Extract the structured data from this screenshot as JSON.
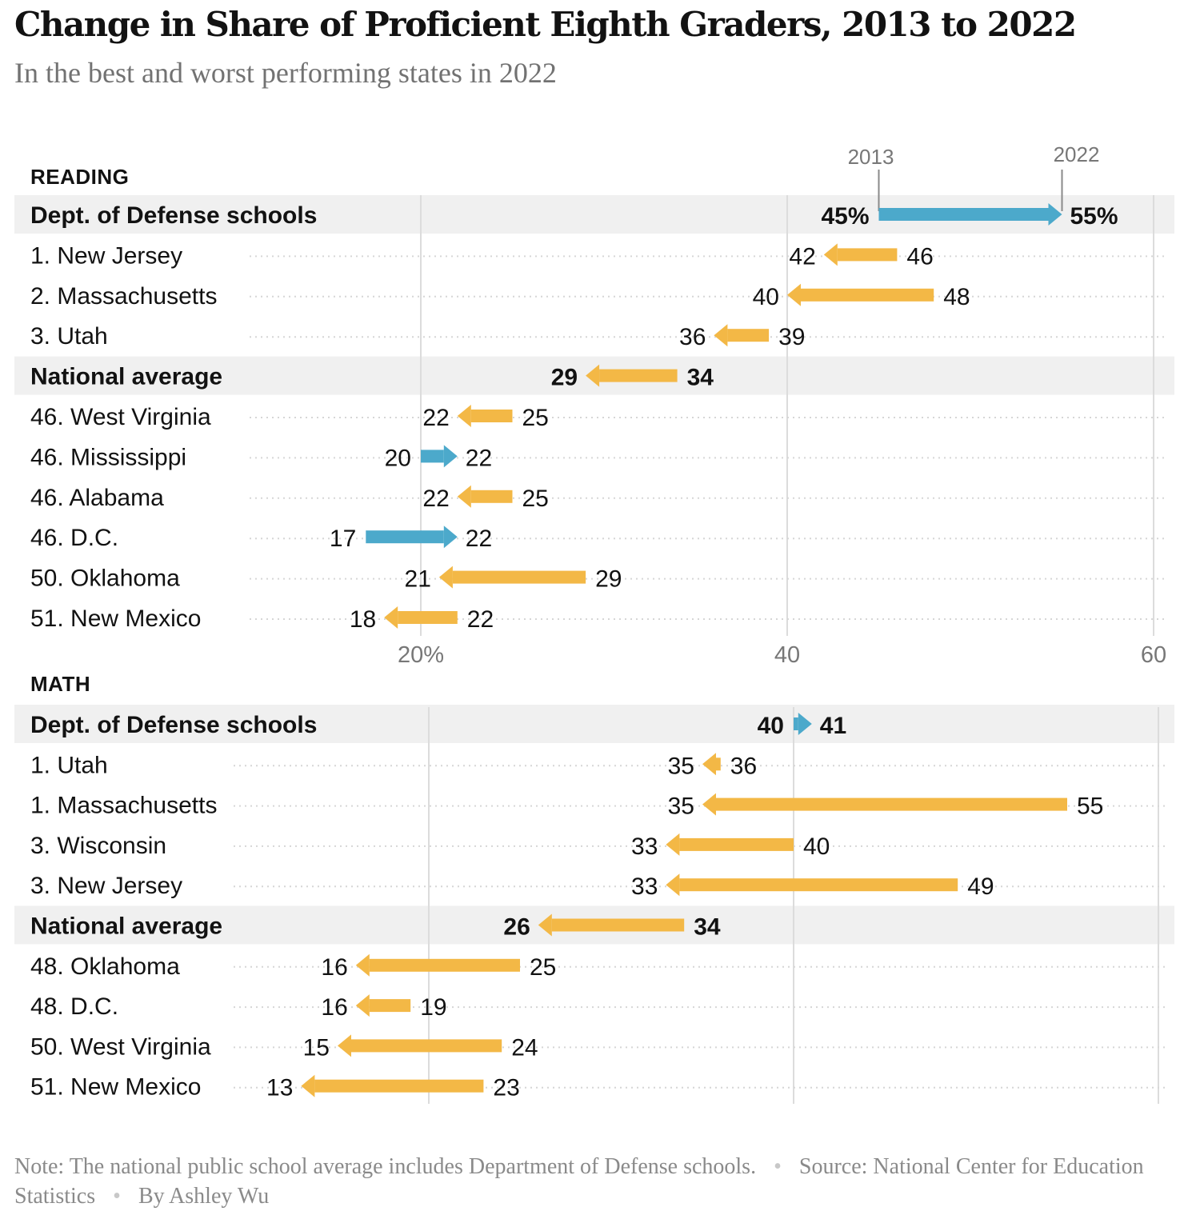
{
  "title": "Change in Share of Proficient Eighth Graders, 2013 to 2022",
  "subtitle": "In the best and worst performing states in 2022",
  "note": "Note: The national public school average includes Department of Defense schools.",
  "source": "Source: National Center for Education Statistics",
  "byline": "By Ashley Wu",
  "chart_data": [
    {
      "type": "arrow-dot",
      "panel": "READING",
      "xlim": [
        0,
        60
      ],
      "xticks": [
        {
          "value": 20,
          "label": "20%"
        },
        {
          "value": 40,
          "label": "40"
        },
        {
          "value": 60,
          "label": "60"
        }
      ],
      "legend": {
        "start_label": "2013",
        "end_label": "2022"
      },
      "series": [
        {
          "name": "2013"
        },
        {
          "name": "2022"
        }
      ],
      "rows": [
        {
          "label": "Dept. of Defense schools",
          "y2013": 45,
          "y2022": 55,
          "start_text": "45%",
          "end_text": "55%",
          "highlight": true
        },
        {
          "label": "1. New Jersey",
          "y2013": 46,
          "y2022": 42,
          "start_text": "46",
          "end_text": "42",
          "highlight": false
        },
        {
          "label": "2. Massachusetts",
          "y2013": 48,
          "y2022": 40,
          "start_text": "48",
          "end_text": "40",
          "highlight": false
        },
        {
          "label": "3. Utah",
          "y2013": 39,
          "y2022": 36,
          "start_text": "39",
          "end_text": "36",
          "highlight": false
        },
        {
          "label": "National average",
          "y2013": 34,
          "y2022": 29,
          "start_text": "34",
          "end_text": "29",
          "highlight": true
        },
        {
          "label": "46. West Virginia",
          "y2013": 25,
          "y2022": 22,
          "start_text": "25",
          "end_text": "22",
          "highlight": false
        },
        {
          "label": "46. Mississippi",
          "y2013": 20,
          "y2022": 22,
          "start_text": "20",
          "end_text": "22",
          "highlight": false
        },
        {
          "label": "46. Alabama",
          "y2013": 25,
          "y2022": 22,
          "start_text": "25",
          "end_text": "22",
          "highlight": false
        },
        {
          "label": "46. D.C.",
          "y2013": 17,
          "y2022": 22,
          "start_text": "17",
          "end_text": "22",
          "highlight": false
        },
        {
          "label": "50. Oklahoma",
          "y2013": 29,
          "y2022": 21,
          "start_text": "29",
          "end_text": "21",
          "highlight": false
        },
        {
          "label": "51. New Mexico",
          "y2013": 22,
          "y2022": 18,
          "start_text": "22",
          "end_text": "18",
          "highlight": false
        }
      ]
    },
    {
      "type": "arrow-dot",
      "panel": "MATH",
      "xlim": [
        0,
        60
      ],
      "series": [
        {
          "name": "2013"
        },
        {
          "name": "2022"
        }
      ],
      "rows": [
        {
          "label": "Dept. of Defense schools",
          "y2013": 40,
          "y2022": 41,
          "start_text": "40",
          "end_text": "41",
          "highlight": true
        },
        {
          "label": "1. Utah",
          "y2013": 36,
          "y2022": 35,
          "start_text": "36",
          "end_text": "35",
          "highlight": false
        },
        {
          "label": "1. Massachusetts",
          "y2013": 55,
          "y2022": 35,
          "start_text": "55",
          "end_text": "35",
          "highlight": false
        },
        {
          "label": "3. Wisconsin",
          "y2013": 40,
          "y2022": 33,
          "start_text": "40",
          "end_text": "33",
          "highlight": false
        },
        {
          "label": "3. New Jersey",
          "y2013": 49,
          "y2022": 33,
          "start_text": "49",
          "end_text": "33",
          "highlight": false
        },
        {
          "label": "National average",
          "y2013": 34,
          "y2022": 26,
          "start_text": "34",
          "end_text": "26",
          "highlight": true
        },
        {
          "label": "48. Oklahoma",
          "y2013": 25,
          "y2022": 16,
          "start_text": "25",
          "end_text": "16",
          "highlight": false
        },
        {
          "label": "48. D.C.",
          "y2013": 19,
          "y2022": 16,
          "start_text": "19",
          "end_text": "16",
          "highlight": false
        },
        {
          "label": "50. West Virginia",
          "y2013": 24,
          "y2022": 15,
          "start_text": "24",
          "end_text": "15",
          "highlight": false
        },
        {
          "label": "51. New Mexico",
          "y2013": 23,
          "y2022": 13,
          "start_text": "23",
          "end_text": "13",
          "highlight": false
        }
      ]
    }
  ],
  "colors": {
    "increase": "#4ca9cb",
    "decrease": "#f3b846",
    "highlight_band": "#f0f0f0",
    "grid": "#dcdcdc",
    "dots": "#d6d6d6",
    "text": "#121212",
    "muted": "#777777"
  }
}
